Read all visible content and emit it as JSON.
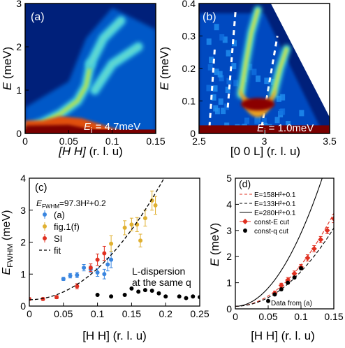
{
  "colors": {
    "blue": "#3a86e0",
    "gold": "#e0b030",
    "red": "#e03020",
    "heat_bg": "#00207a",
    "heat_hot": "#7a0000"
  },
  "chart_data": [
    {
      "panel": "(a)",
      "type": "heatmap",
      "xlabel_text": "[H H]",
      "xlabel_unit": "(r. l. u)",
      "ylabel": "E",
      "ylabel_unit": "(meV)",
      "xlim": [
        0,
        0.15
      ],
      "ylim": [
        0,
        3
      ],
      "xticks": [
        "0",
        "0.05",
        "0.1",
        "0.15"
      ],
      "yticks": [
        "0",
        "1",
        "2",
        "3"
      ],
      "annotation_ei": "E",
      "annotation_ei_sub": "i",
      "annotation_ei_value": " = 4.7meV",
      "ridges": [
        {
          "x": [
            0.0,
            0.02,
            0.04,
            0.06,
            0.07,
            0.075
          ],
          "y": [
            0.1,
            0.25,
            0.45,
            0.75,
            1.1,
            1.6
          ]
        },
        {
          "x": [
            0.075,
            0.09,
            0.11
          ],
          "y": [
            1.6,
            2.2,
            2.6
          ]
        },
        {
          "x": [
            0.08,
            0.1,
            0.13
          ],
          "y": [
            1.0,
            1.6,
            2.0
          ]
        }
      ]
    },
    {
      "panel": "(b)",
      "type": "heatmap",
      "xlabel": "[0 0 L] (r. l. u)",
      "ylabel": "E",
      "ylabel_unit": "(meV)",
      "xlim": [
        2.5,
        3.5
      ],
      "ylim": [
        0,
        0.4
      ],
      "xticks": [
        "2.5",
        "3",
        "3.5"
      ],
      "yticks": [
        "0",
        "0.1",
        "0.2",
        "0.3",
        "0.4"
      ],
      "annotation_ei": "E",
      "annotation_ei_sub": "i",
      "annotation_ei_value": " = 1.0meV",
      "dispersion_branches": [
        {
          "x": [
            2.82,
            2.86,
            2.9,
            2.95
          ],
          "y": [
            0.12,
            0.22,
            0.31,
            0.38
          ]
        },
        {
          "x": [
            3.07,
            3.12,
            3.17
          ],
          "y": [
            0.12,
            0.2,
            0.26
          ]
        }
      ]
    },
    {
      "panel": "(c)",
      "type": "scatter",
      "xlabel": "[H H] (r. l. u)",
      "ylabel_main": "E",
      "ylabel_sub": "FWHM",
      "ylabel_unit": "(meV)",
      "xlim": [
        0,
        0.25
      ],
      "ylim": [
        0,
        4
      ],
      "xticks": [
        "0",
        "0.05",
        "0.1",
        "0.15",
        "0.2",
        "0.25"
      ],
      "yticks": [
        "0",
        "1",
        "2",
        "3",
        "4"
      ],
      "equation_lhs": "E",
      "equation_sub": "FWHM",
      "equation_rhs": "=97.3H²+0.2",
      "annotation_line1": "L-dispersion",
      "annotation_line2": "at the same q",
      "series": [
        {
          "name": "(a)",
          "color": "blue",
          "marker": "circle",
          "errorbars": true,
          "x": [
            0.05,
            0.06,
            0.07,
            0.08,
            0.09,
            0.1,
            0.11,
            0.115,
            0.12
          ],
          "y": [
            0.85,
            0.95,
            0.97,
            1.2,
            1.15,
            1.05,
            1.0,
            1.3,
            1.45
          ],
          "err": [
            0.05,
            0.07,
            0.08,
            0.1,
            0.1,
            0.12,
            0.15,
            0.2,
            0.25
          ]
        },
        {
          "name": "fig.1(f)",
          "color": "gold",
          "marker": "circle",
          "errorbars": true,
          "x": [
            0.12,
            0.14,
            0.15,
            0.158,
            0.163,
            0.17,
            0.18,
            0.185
          ],
          "y": [
            1.95,
            2.45,
            2.55,
            2.55,
            2.05,
            2.75,
            3.3,
            3.15
          ],
          "err": [
            0.25,
            0.22,
            0.2,
            0.22,
            0.2,
            0.25,
            0.3,
            0.28
          ]
        },
        {
          "name": "SI",
          "color": "red",
          "marker": "circle",
          "errorbars": true,
          "x": [
            0.0,
            0.02,
            0.04,
            0.07,
            0.09,
            0.1,
            0.11
          ],
          "y": [
            0.22,
            0.22,
            0.28,
            0.62,
            1.2,
            1.45,
            1.65
          ],
          "err": [
            0.04,
            0.04,
            0.05,
            0.08,
            0.12,
            0.18,
            0.22
          ]
        },
        {
          "name": "fit",
          "color": "#000000",
          "style": "dashed",
          "formula": "97.3*x^2+0.2"
        },
        {
          "name": "L-dispersion at the same q",
          "color": "#000000",
          "marker": "circle",
          "errorbars": false,
          "x": [
            0.1,
            0.12,
            0.14,
            0.15,
            0.16,
            0.17,
            0.18,
            0.19,
            0.2,
            0.22,
            0.23,
            0.24,
            0.25
          ],
          "y": [
            0.35,
            0.3,
            0.35,
            0.55,
            0.45,
            0.5,
            0.48,
            0.4,
            0.3,
            0.3,
            0.25,
            0.3,
            0.28
          ]
        }
      ],
      "legend": "upper-left"
    },
    {
      "panel": "(d)",
      "type": "line",
      "xlabel": "[H H] (r. l. u)",
      "ylabel": "E",
      "ylabel_unit": "(meV)",
      "xlim": [
        0,
        0.15
      ],
      "ylim": [
        0,
        5
      ],
      "xticks": [
        "0",
        "0.05",
        "0.1",
        "0.15"
      ],
      "yticks": [
        "0",
        "1",
        "2",
        "3",
        "4",
        "5"
      ],
      "footnote": "Data from (a)",
      "series": [
        {
          "name": "E=158H²+0.1",
          "color": "red",
          "style": "dashed",
          "formula": "158*x^2+0.1"
        },
        {
          "name": "E=133H²+0.1",
          "color": "#000000",
          "style": "dashed",
          "formula": "133*x^2+0.1"
        },
        {
          "name": "E=280H²+0.1",
          "color": "#000000",
          "style": "solid",
          "formula": "280*x^2+0.1"
        },
        {
          "name": "const-E cut",
          "color": "red",
          "marker": "diamond",
          "errorbars": true,
          "x": [
            0.06,
            0.07,
            0.08,
            0.09,
            0.1,
            0.11,
            0.12,
            0.13,
            0.14,
            0.15
          ],
          "y": [
            0.6,
            0.9,
            1.1,
            1.35,
            1.6,
            1.95,
            2.3,
            2.65,
            3.0,
            3.45
          ],
          "err": [
            0.08,
            0.08,
            0.1,
            0.1,
            0.1,
            0.12,
            0.12,
            0.12,
            0.12,
            0.15
          ]
        },
        {
          "name": "const-q cut",
          "color": "#000000",
          "marker": "circle",
          "errorbars": false,
          "x": [
            0.05,
            0.06,
            0.07,
            0.08,
            0.09,
            0.1
          ],
          "y": [
            0.3,
            0.55,
            0.75,
            1.0,
            1.2,
            1.55
          ]
        }
      ],
      "legend": "upper-left"
    }
  ]
}
